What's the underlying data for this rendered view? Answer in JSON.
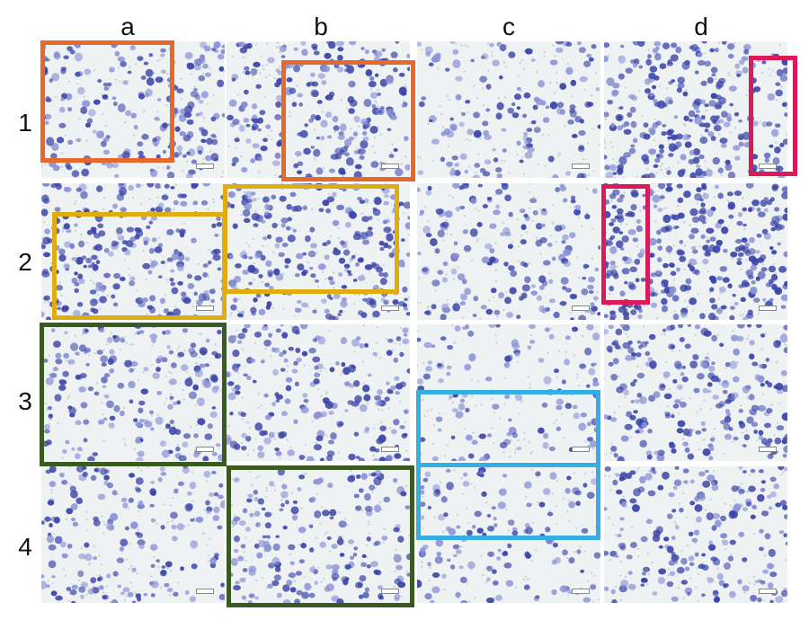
{
  "column_labels": [
    "a",
    "b",
    "c",
    "d"
  ],
  "row_labels": [
    "1",
    "2",
    "3",
    "4"
  ],
  "colors": {
    "background": "#ffffff",
    "orange_box": "#e8672a",
    "yellow_box": "#e0ad10",
    "green_box": "#3a5a22",
    "blue_box": "#35aee3",
    "magenta_box": "#db1a5a",
    "cell_dark": "#3a44a8",
    "cell_light": "#8a92d6",
    "field_bg": "#eef2f3"
  },
  "panels": [
    {
      "row": 1,
      "col": "a",
      "density": 0.55
    },
    {
      "row": 1,
      "col": "b",
      "density": 0.6
    },
    {
      "row": 1,
      "col": "c",
      "density": 0.3
    },
    {
      "row": 1,
      "col": "d",
      "density": 0.75
    },
    {
      "row": 2,
      "col": "a",
      "density": 0.7
    },
    {
      "row": 2,
      "col": "b",
      "density": 0.7
    },
    {
      "row": 2,
      "col": "c",
      "density": 0.4
    },
    {
      "row": 2,
      "col": "d",
      "density": 0.95
    },
    {
      "row": 3,
      "col": "a",
      "density": 0.45
    },
    {
      "row": 3,
      "col": "b",
      "density": 0.5
    },
    {
      "row": 3,
      "col": "c",
      "density": 0.2
    },
    {
      "row": 3,
      "col": "d",
      "density": 0.6
    },
    {
      "row": 4,
      "col": "a",
      "density": 0.4
    },
    {
      "row": 4,
      "col": "b",
      "density": 0.45
    },
    {
      "row": 4,
      "col": "c",
      "density": 0.25
    },
    {
      "row": 4,
      "col": "d",
      "density": 0.5
    }
  ],
  "highlight_boxes": [
    {
      "name": "orange-box-a1",
      "color": "orange_box"
    },
    {
      "name": "orange-box-b1",
      "color": "orange_box"
    },
    {
      "name": "yellow-box-a2",
      "color": "yellow_box"
    },
    {
      "name": "yellow-box-b2",
      "color": "yellow_box"
    },
    {
      "name": "green-box-a3",
      "color": "green_box"
    },
    {
      "name": "green-box-b4",
      "color": "green_box"
    },
    {
      "name": "blue-box-c3",
      "color": "blue_box"
    },
    {
      "name": "blue-box-c4",
      "color": "blue_box"
    },
    {
      "name": "magenta-box-d1",
      "color": "magenta_box"
    },
    {
      "name": "magenta-box-d2",
      "color": "magenta_box"
    }
  ]
}
